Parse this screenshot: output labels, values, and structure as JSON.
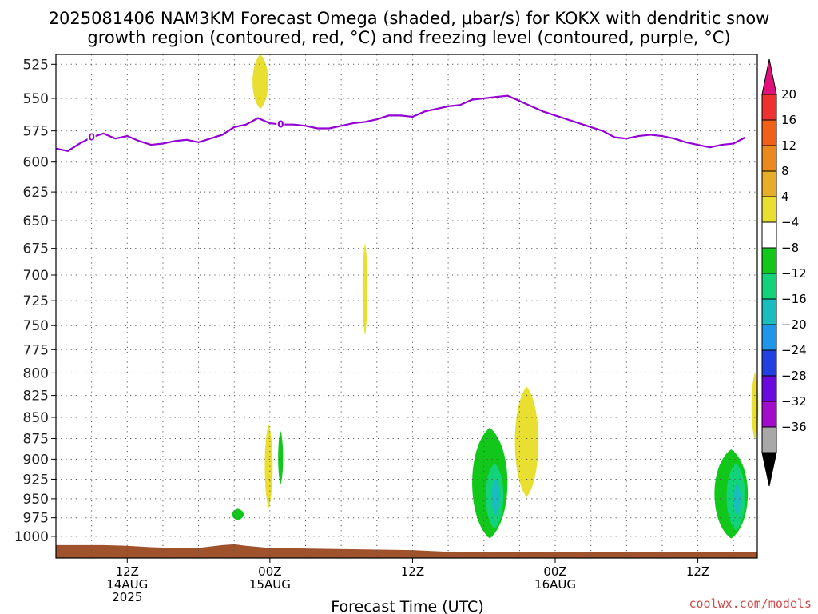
{
  "title": {
    "line1": "2025081406 NAM3KM Forecast Omega (shaded, μbar/s) for KOKX with dendritic snow",
    "line2": "growth region (contoured, red, °C) and freezing level (contoured, purple, °C)"
  },
  "credit": "coolwx.com/models",
  "chart_data": {
    "type": "heatmap",
    "xlabel": "Forecast Time (UTC)",
    "x_ticks": [
      {
        "hour": 6,
        "lines": [
          "12Z",
          "14AUG",
          "2025"
        ]
      },
      {
        "hour": 18,
        "lines": [
          "00Z",
          "15AUG"
        ]
      },
      {
        "hour": 30,
        "lines": [
          "12Z"
        ]
      },
      {
        "hour": 42,
        "lines": [
          "00Z",
          "16AUG"
        ]
      },
      {
        "hour": 54,
        "lines": [
          "12Z"
        ]
      }
    ],
    "xlim": [
      0,
      59
    ],
    "y_scale": "log-pressure",
    "ylabel": "",
    "ylim": [
      1030,
      518
    ],
    "y_ticks": [
      525,
      550,
      575,
      600,
      625,
      650,
      675,
      700,
      725,
      750,
      775,
      800,
      825,
      850,
      875,
      900,
      925,
      950,
      975,
      1000
    ],
    "grid": true,
    "colorbar": {
      "labels": [
        "20",
        "16",
        "12",
        "8",
        "4",
        "-4",
        "-8",
        "-12",
        "-16",
        "-20",
        "-24",
        "-28",
        "-32",
        "-36"
      ],
      "colors": [
        "#ef3030",
        "#f06018",
        "#ea8a1e",
        "#e8ad26",
        "#e8df30",
        "#ffffff",
        "#11c81a",
        "#12d37a",
        "#19bdbd",
        "#2096ea",
        "#2040e0",
        "#6a0adf",
        "#a20ccd",
        "#a8a8a8"
      ],
      "top_arrow_color": "#e0107a",
      "bottom_arrow_color": "#000000"
    },
    "freezing_level": {
      "label": "0",
      "color": "#9400d3",
      "points": [
        [
          0,
          589
        ],
        [
          1,
          591
        ],
        [
          2,
          585
        ],
        [
          3,
          580
        ],
        [
          4,
          577
        ],
        [
          5,
          581
        ],
        [
          6,
          579
        ],
        [
          7,
          583
        ],
        [
          8,
          586
        ],
        [
          9,
          585
        ],
        [
          10,
          583
        ],
        [
          11,
          582
        ],
        [
          12,
          584
        ],
        [
          13,
          581
        ],
        [
          14,
          578
        ],
        [
          15,
          572
        ],
        [
          16,
          570
        ],
        [
          17,
          565
        ],
        [
          18,
          569
        ],
        [
          19,
          570
        ],
        [
          20,
          570
        ],
        [
          21,
          571
        ],
        [
          22,
          573
        ],
        [
          23,
          573
        ],
        [
          24,
          571
        ],
        [
          25,
          569
        ],
        [
          26,
          568
        ],
        [
          27,
          566
        ],
        [
          28,
          563
        ],
        [
          29,
          563
        ],
        [
          30,
          564
        ],
        [
          31,
          560
        ],
        [
          32,
          558
        ],
        [
          33,
          556
        ],
        [
          34,
          555
        ],
        [
          35,
          551
        ],
        [
          36,
          550
        ],
        [
          37,
          549
        ],
        [
          38,
          548
        ],
        [
          39,
          552
        ],
        [
          40,
          556
        ],
        [
          41,
          560
        ],
        [
          42,
          563
        ],
        [
          43,
          566
        ],
        [
          44,
          569
        ],
        [
          45,
          572
        ],
        [
          46,
          575
        ],
        [
          47,
          580
        ],
        [
          48,
          581
        ],
        [
          49,
          579
        ],
        [
          50,
          578
        ],
        [
          51,
          579
        ],
        [
          52,
          581
        ],
        [
          53,
          584
        ],
        [
          54,
          586
        ],
        [
          55,
          588
        ],
        [
          56,
          586
        ],
        [
          57,
          585
        ],
        [
          58,
          580
        ]
      ]
    },
    "omega_regions": [
      {
        "value": 6,
        "color": "#e8df30",
        "center": [
          17.2,
          537
        ],
        "half_width": 0.8,
        "p_range": [
          518,
          558
        ]
      },
      {
        "value": 6,
        "color": "#e8df30",
        "center": [
          26.0,
          712
        ],
        "half_width": 0.25,
        "p_range": [
          670,
          760
        ]
      },
      {
        "value": 6,
        "color": "#e8df30",
        "center": [
          17.9,
          902
        ],
        "half_width": 0.4,
        "p_range": [
          858,
          962
        ]
      },
      {
        "value": -6,
        "color": "#11c81a",
        "center": [
          18.9,
          897
        ],
        "half_width": 0.25,
        "p_range": [
          866,
          932
        ]
      },
      {
        "value": -6,
        "color": "#11c81a",
        "center": [
          15.3,
          970
        ],
        "half_width": 0.6,
        "p_range": [
          963,
          978
        ]
      },
      {
        "value": 6,
        "color": "#e8df30",
        "center": [
          39.6,
          872
        ],
        "half_width": 1.2,
        "p_range": [
          815,
          948
        ]
      },
      {
        "value": -6,
        "color": "#11c81a",
        "center": [
          36.5,
          930
        ],
        "half_width": 1.8,
        "p_range": [
          862,
          1003
        ]
      },
      {
        "value": -10,
        "color": "#12d37a",
        "center": [
          36.9,
          946
        ],
        "half_width": 0.9,
        "p_range": [
          905,
          990
        ]
      },
      {
        "value": -14,
        "color": "#19bdbd",
        "center": [
          37.0,
          950
        ],
        "half_width": 0.45,
        "p_range": [
          925,
          972
        ]
      },
      {
        "value": 6,
        "color": "#e8df30",
        "center": [
          58.8,
          838
        ],
        "half_width": 0.35,
        "p_range": [
          800,
          876
        ]
      },
      {
        "value": -6,
        "color": "#11c81a",
        "center": [
          56.8,
          943
        ],
        "half_width": 1.7,
        "p_range": [
          888,
          1003
        ]
      },
      {
        "value": -10,
        "color": "#12d37a",
        "center": [
          57.2,
          948
        ],
        "half_width": 0.95,
        "p_range": [
          905,
          992
        ]
      },
      {
        "value": -14,
        "color": "#19bdbd",
        "center": [
          57.3,
          952
        ],
        "half_width": 0.35,
        "p_range": [
          930,
          972
        ]
      }
    ],
    "surface": {
      "color": "#a0522d",
      "points": [
        [
          0,
          1012
        ],
        [
          4,
          1012
        ],
        [
          6,
          1013
        ],
        [
          8,
          1015
        ],
        [
          10,
          1016
        ],
        [
          12,
          1016
        ],
        [
          13,
          1014
        ],
        [
          14,
          1012
        ],
        [
          15,
          1011
        ],
        [
          16,
          1013
        ],
        [
          18,
          1016
        ],
        [
          22,
          1017
        ],
        [
          26,
          1018
        ],
        [
          30,
          1019
        ],
        [
          34,
          1022
        ],
        [
          38,
          1022
        ],
        [
          42,
          1021
        ],
        [
          46,
          1022
        ],
        [
          50,
          1021
        ],
        [
          54,
          1022
        ],
        [
          56,
          1021
        ],
        [
          59,
          1021
        ]
      ]
    }
  }
}
